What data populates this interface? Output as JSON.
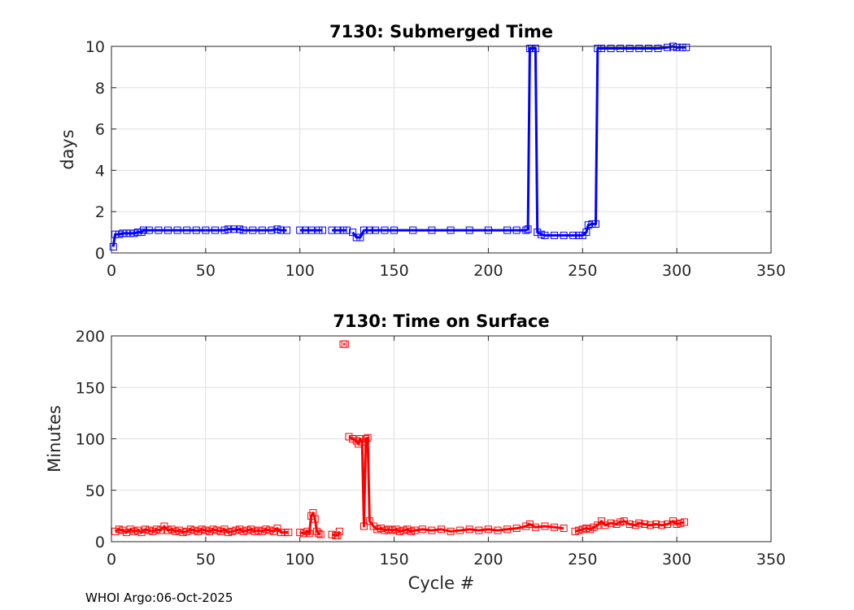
{
  "footer": "WHOI Argo:06-Oct-2025",
  "colors": {
    "top_series": "#0000ff",
    "bottom_series": "#ff0000",
    "grid": "#e0e0e0",
    "axis": "#262626"
  },
  "chart_data": [
    {
      "type": "line",
      "title": "7130: Submerged Time",
      "xlabel": "",
      "ylabel": "days",
      "xlim": [
        0,
        350
      ],
      "ylim": [
        0,
        10
      ],
      "xticks": [
        0,
        50,
        100,
        150,
        200,
        250,
        300,
        350
      ],
      "yticks": [
        0,
        2,
        4,
        6,
        8,
        10
      ],
      "marker": "square",
      "series": [
        {
          "name": "Submerged Time",
          "color": "#0000ff",
          "segments": [
            [
              [
                1,
                0.3
              ],
              [
                2,
                0.9
              ],
              [
                4,
                0.9
              ],
              [
                6,
                0.95
              ],
              [
                8,
                0.95
              ],
              [
                10,
                0.95
              ],
              [
                12,
                0.95
              ],
              [
                14,
                1.0
              ],
              [
                16,
                1.0
              ],
              [
                17,
                1.1
              ],
              [
                20,
                1.1
              ],
              [
                25,
                1.1
              ],
              [
                30,
                1.1
              ],
              [
                35,
                1.1
              ],
              [
                40,
                1.1
              ],
              [
                45,
                1.1
              ],
              [
                50,
                1.1
              ],
              [
                55,
                1.1
              ],
              [
                60,
                1.1
              ],
              [
                62,
                1.15
              ],
              [
                65,
                1.15
              ],
              [
                68,
                1.15
              ],
              [
                70,
                1.1
              ],
              [
                75,
                1.1
              ],
              [
                80,
                1.1
              ],
              [
                85,
                1.1
              ],
              [
                88,
                1.15
              ],
              [
                90,
                1.1
              ],
              [
                93,
                1.1
              ]
            ],
            [
              [
                100,
                1.1
              ],
              [
                103,
                1.1
              ],
              [
                106,
                1.1
              ],
              [
                110,
                1.1
              ],
              [
                112,
                1.1
              ]
            ],
            [
              [
                117,
                1.1
              ],
              [
                120,
                1.1
              ],
              [
                123,
                1.1
              ],
              [
                125,
                1.1
              ]
            ],
            [
              [
                128,
                1.0
              ],
              [
                130,
                0.75
              ],
              [
                132,
                0.75
              ],
              [
                134,
                1.1
              ],
              [
                137,
                1.1
              ],
              [
                140,
                1.1
              ],
              [
                145,
                1.1
              ],
              [
                150,
                1.1
              ],
              [
                160,
                1.1
              ],
              [
                170,
                1.1
              ],
              [
                180,
                1.1
              ],
              [
                190,
                1.1
              ],
              [
                200,
                1.1
              ],
              [
                210,
                1.1
              ],
              [
                215,
                1.1
              ],
              [
                220,
                1.1
              ],
              [
                221,
                1.15
              ],
              [
                222,
                9.9
              ],
              [
                223,
                9.9
              ],
              [
                225,
                9.9
              ],
              [
                226,
                1.0
              ],
              [
                228,
                0.9
              ],
              [
                230,
                0.85
              ],
              [
                235,
                0.85
              ],
              [
                240,
                0.85
              ],
              [
                245,
                0.85
              ],
              [
                248,
                0.85
              ],
              [
                250,
                0.85
              ],
              [
                252,
                1.0
              ],
              [
                253,
                1.35
              ],
              [
                255,
                1.4
              ],
              [
                257,
                1.4
              ],
              [
                258,
                9.9
              ],
              [
                260,
                9.9
              ],
              [
                265,
                9.9
              ],
              [
                270,
                9.9
              ],
              [
                275,
                9.9
              ],
              [
                280,
                9.9
              ],
              [
                285,
                9.9
              ],
              [
                290,
                9.9
              ],
              [
                295,
                9.95
              ],
              [
                298,
                10.0
              ],
              [
                300,
                9.95
              ],
              [
                303,
                9.95
              ],
              [
                305,
                9.95
              ]
            ]
          ]
        }
      ]
    },
    {
      "type": "line",
      "title": "7130: Time on Surface",
      "xlabel": "Cycle #",
      "ylabel": "Minutes",
      "xlim": [
        0,
        350
      ],
      "ylim": [
        0,
        200
      ],
      "xticks": [
        0,
        50,
        100,
        150,
        200,
        250,
        300,
        350
      ],
      "yticks": [
        0,
        50,
        100,
        150,
        200
      ],
      "marker": "square",
      "series": [
        {
          "name": "Time on Surface",
          "color": "#ff0000",
          "segments": [
            [
              [
                2,
                10
              ],
              [
                4,
                12
              ],
              [
                6,
                11
              ],
              [
                8,
                9
              ],
              [
                10,
                12
              ],
              [
                12,
                10
              ],
              [
                14,
                11
              ],
              [
                16,
                9
              ],
              [
                18,
                12
              ],
              [
                20,
                11
              ],
              [
                22,
                10
              ],
              [
                24,
                12
              ],
              [
                26,
                11
              ],
              [
                28,
                15
              ],
              [
                30,
                11
              ],
              [
                32,
                12
              ],
              [
                34,
                10
              ],
              [
                36,
                11
              ],
              [
                38,
                9
              ],
              [
                40,
                10
              ],
              [
                42,
                12
              ],
              [
                44,
                11
              ],
              [
                46,
                10
              ],
              [
                48,
                12
              ],
              [
                50,
                11
              ],
              [
                52,
                10
              ],
              [
                54,
                12
              ],
              [
                56,
                11
              ],
              [
                58,
                10
              ],
              [
                60,
                12
              ],
              [
                62,
                9
              ],
              [
                64,
                10
              ],
              [
                66,
                11
              ],
              [
                68,
                12
              ],
              [
                70,
                10
              ],
              [
                72,
                11
              ],
              [
                74,
                12
              ],
              [
                76,
                10
              ],
              [
                78,
                11
              ],
              [
                80,
                10
              ],
              [
                82,
                12
              ],
              [
                84,
                11
              ],
              [
                86,
                10
              ],
              [
                88,
                13
              ],
              [
                90,
                9
              ],
              [
                92,
                9
              ],
              [
                94,
                9
              ]
            ],
            [
              [
                100,
                9
              ],
              [
                102,
                8
              ],
              [
                104,
                10
              ],
              [
                105,
                8
              ],
              [
                106,
                25
              ],
              [
                107,
                28
              ],
              [
                108,
                22
              ],
              [
                109,
                10
              ],
              [
                110,
                8
              ],
              [
                111,
                7
              ]
            ],
            [
              [
                117,
                7
              ],
              [
                119,
                6
              ],
              [
                120,
                6
              ],
              [
                121,
                10
              ]
            ],
            [
              [
                123,
                192
              ],
              [
                124,
                192
              ]
            ],
            [
              [
                126,
                102
              ],
              [
                128,
                100
              ],
              [
                130,
                98
              ],
              [
                131,
                95
              ],
              [
                132,
                100
              ],
              [
                133,
                97
              ],
              [
                134,
                15
              ],
              [
                135,
                100
              ],
              [
                136,
                101
              ],
              [
                137,
                20
              ],
              [
                139,
                15
              ],
              [
                141,
                12
              ],
              [
                143,
                13
              ],
              [
                145,
                11
              ],
              [
                147,
                12
              ],
              [
                149,
                11
              ],
              [
                151,
                12
              ],
              [
                153,
                10
              ],
              [
                155,
                11
              ],
              [
                157,
                12
              ],
              [
                159,
                10
              ],
              [
                161,
                11
              ],
              [
                165,
                12
              ],
              [
                170,
                11
              ],
              [
                175,
                12
              ],
              [
                180,
                10
              ],
              [
                185,
                11
              ],
              [
                190,
                12
              ],
              [
                195,
                11
              ],
              [
                200,
                12
              ],
              [
                205,
                11
              ],
              [
                210,
                12
              ],
              [
                215,
                13
              ],
              [
                220,
                15
              ],
              [
                222,
                17
              ],
              [
                225,
                14
              ],
              [
                230,
                15
              ],
              [
                235,
                14
              ],
              [
                240,
                13
              ]
            ],
            [
              [
                246,
                10
              ],
              [
                248,
                11
              ],
              [
                250,
                12
              ],
              [
                252,
                13
              ],
              [
                254,
                12
              ],
              [
                256,
                14
              ],
              [
                258,
                16
              ],
              [
                260,
                20
              ],
              [
                262,
                16
              ],
              [
                265,
                18
              ],
              [
                268,
                17
              ],
              [
                270,
                19
              ],
              [
                272,
                20
              ],
              [
                275,
                17
              ],
              [
                278,
                16
              ],
              [
                280,
                18
              ],
              [
                283,
                17
              ],
              [
                286,
                16
              ],
              [
                289,
                17
              ],
              [
                292,
                16
              ],
              [
                295,
                17
              ],
              [
                298,
                20
              ],
              [
                300,
                17
              ],
              [
                302,
                18
              ],
              [
                304,
                19
              ]
            ]
          ]
        }
      ]
    }
  ]
}
